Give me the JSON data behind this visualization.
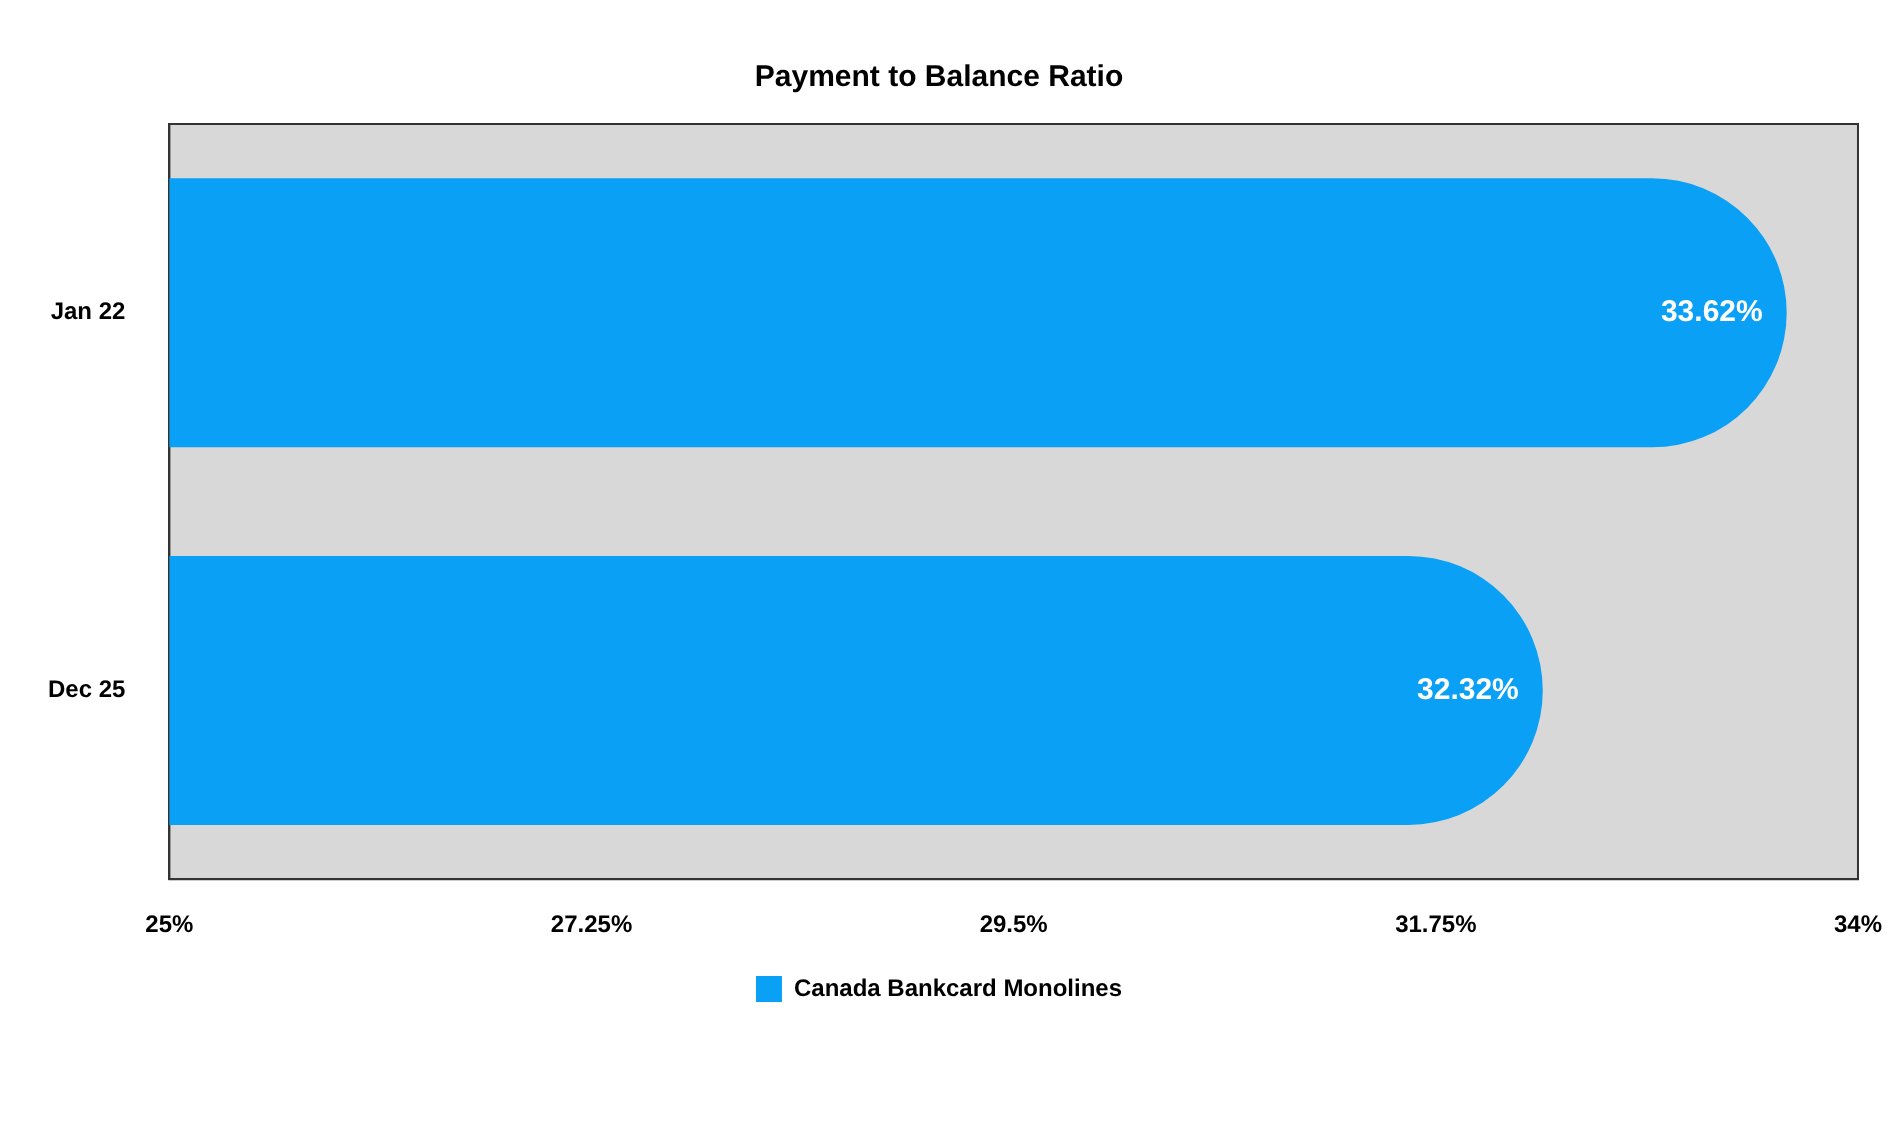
{
  "chart_data": {
    "type": "bar",
    "orientation": "horizontal",
    "title": "Payment to Balance Ratio",
    "categories": [
      "Jan 22",
      "Dec 25"
    ],
    "series": [
      {
        "name": "Canada Bankcard Monolines",
        "color": "#0aa0f5",
        "values": [
          33.62,
          32.32
        ],
        "value_labels": [
          "33.62%",
          "32.32%"
        ]
      }
    ],
    "xlim": [
      25,
      34
    ],
    "xticks": [
      {
        "value": 25,
        "label": "25%"
      },
      {
        "value": 27.25,
        "label": "27.25%"
      },
      {
        "value": 29.5,
        "label": "29.5%"
      },
      {
        "value": 31.75,
        "label": "31.75%"
      },
      {
        "value": 34,
        "label": "34%"
      }
    ],
    "grid": false,
    "legend": "bottom"
  }
}
